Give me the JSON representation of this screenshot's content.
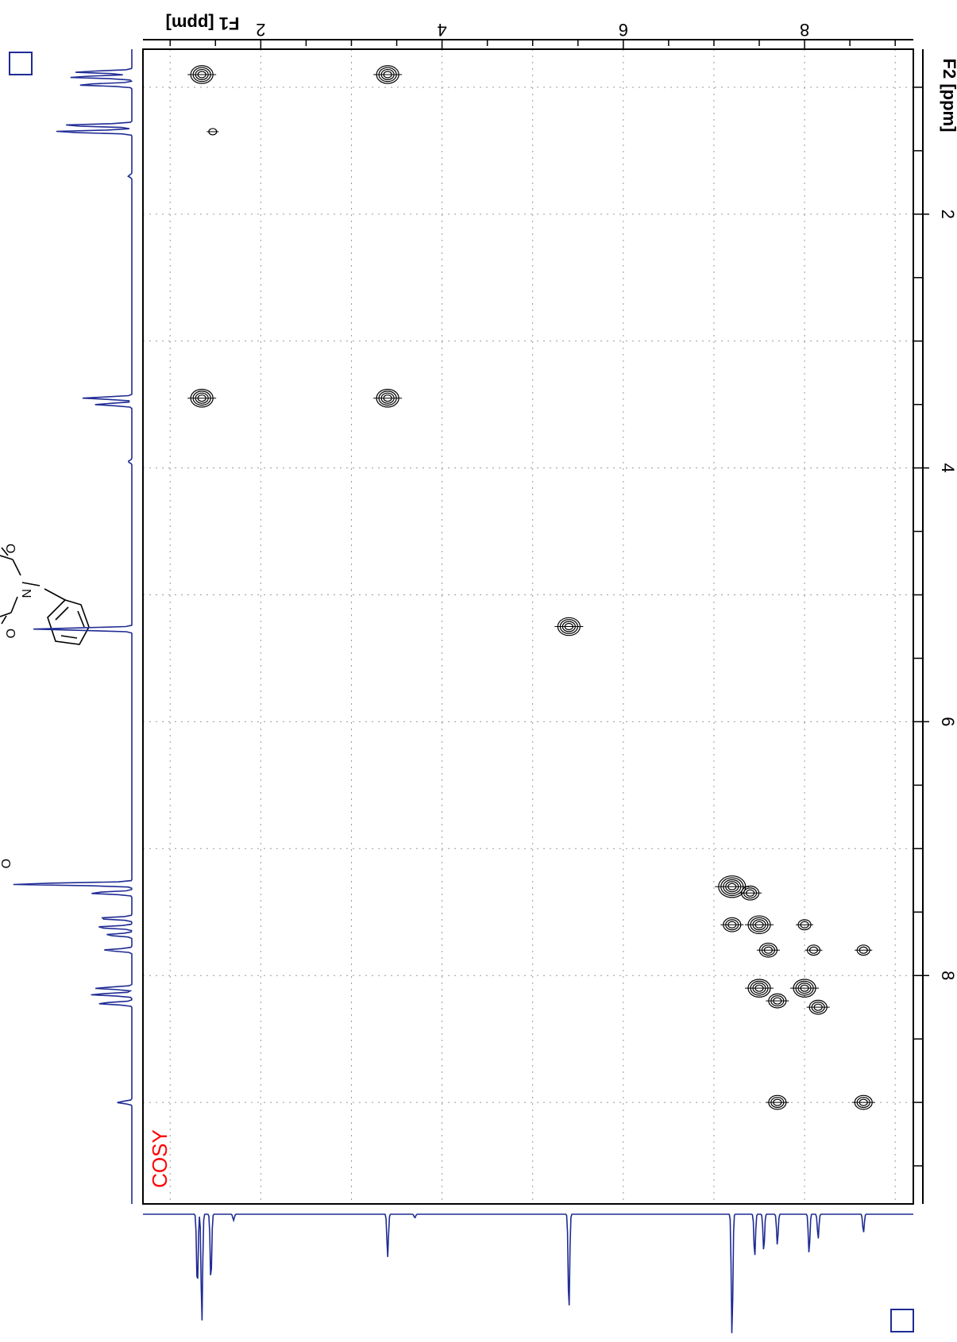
{
  "chart_data": {
    "type": "scatter",
    "experiment": "COSY",
    "f1_axis": {
      "label": "F1 [ppm]",
      "ticks": [
        2,
        4,
        6,
        8
      ],
      "range": [
        0.7,
        9.2
      ]
    },
    "f2_axis": {
      "label": "F2 [ppm]",
      "ticks": [
        2,
        4,
        6,
        8
      ],
      "range": [
        0.7,
        9.8
      ]
    },
    "grid": true,
    "cross_peaks": [
      {
        "f1": 1.35,
        "f2": 0.9,
        "size": 4
      },
      {
        "f1": 1.47,
        "f2": 1.35,
        "size": 1
      },
      {
        "f1": 3.4,
        "f2": 0.9,
        "size": 4
      },
      {
        "f1": 1.35,
        "f2": 3.45,
        "size": 4
      },
      {
        "f1": 3.4,
        "f2": 3.45,
        "size": 4
      },
      {
        "f1": 5.4,
        "f2": 5.25,
        "size": 4
      },
      {
        "f1": 7.2,
        "f2": 7.3,
        "size": 5
      },
      {
        "f1": 7.4,
        "f2": 7.35,
        "size": 3
      },
      {
        "f1": 7.2,
        "f2": 7.6,
        "size": 3
      },
      {
        "f1": 7.5,
        "f2": 7.6,
        "size": 4
      },
      {
        "f1": 7.6,
        "f2": 7.8,
        "size": 3
      },
      {
        "f1": 8.0,
        "f2": 7.6,
        "size": 2
      },
      {
        "f1": 8.1,
        "f2": 7.8,
        "size": 2
      },
      {
        "f1": 8.65,
        "f2": 7.8,
        "size": 2
      },
      {
        "f1": 7.5,
        "f2": 8.1,
        "size": 4
      },
      {
        "f1": 7.7,
        "f2": 8.2,
        "size": 3
      },
      {
        "f1": 8.0,
        "f2": 8.1,
        "size": 4
      },
      {
        "f1": 8.15,
        "f2": 8.25,
        "size": 3
      },
      {
        "f1": 7.7,
        "f2": 9.0,
        "size": 3
      },
      {
        "f1": 8.65,
        "f2": 9.0,
        "size": 3
      }
    ],
    "f2_projection_peaks": [
      {
        "ppm": 0.88,
        "height": 0.47
      },
      {
        "ppm": 0.92,
        "height": 0.52
      },
      {
        "ppm": 0.98,
        "height": 0.45
      },
      {
        "ppm": 1.3,
        "height": 0.58
      },
      {
        "ppm": 1.35,
        "height": 0.65
      },
      {
        "ppm": 1.7,
        "height": 0.03
      },
      {
        "ppm": 3.45,
        "height": 0.4
      },
      {
        "ppm": 3.5,
        "height": 0.3
      },
      {
        "ppm": 3.95,
        "height": 0.03
      },
      {
        "ppm": 5.27,
        "height": 0.8
      },
      {
        "ppm": 7.28,
        "height": 1.0
      },
      {
        "ppm": 7.35,
        "height": 0.35
      },
      {
        "ppm": 7.55,
        "height": 0.28
      },
      {
        "ppm": 7.62,
        "height": 0.3
      },
      {
        "ppm": 7.68,
        "height": 0.22
      },
      {
        "ppm": 7.8,
        "height": 0.23
      },
      {
        "ppm": 8.1,
        "height": 0.3
      },
      {
        "ppm": 8.15,
        "height": 0.34
      },
      {
        "ppm": 8.22,
        "height": 0.28
      },
      {
        "ppm": 9.0,
        "height": 0.12
      }
    ],
    "f1_projection_peaks": [
      {
        "ppm": 1.3,
        "height": 0.6
      },
      {
        "ppm": 1.35,
        "height": 0.88
      },
      {
        "ppm": 1.45,
        "height": 0.55
      },
      {
        "ppm": 1.7,
        "height": 0.05
      },
      {
        "ppm": 3.4,
        "height": 0.35
      },
      {
        "ppm": 3.7,
        "height": 0.03
      },
      {
        "ppm": 5.4,
        "height": 0.8
      },
      {
        "ppm": 7.2,
        "height": 1.0
      },
      {
        "ppm": 7.45,
        "height": 0.35
      },
      {
        "ppm": 7.55,
        "height": 0.3
      },
      {
        "ppm": 7.7,
        "height": 0.25
      },
      {
        "ppm": 8.05,
        "height": 0.32
      },
      {
        "ppm": 8.15,
        "height": 0.2
      },
      {
        "ppm": 8.65,
        "height": 0.15
      }
    ],
    "colors": {
      "spectrum": "#1f2b94",
      "contour": "#000000",
      "grid": "#9a9a9a",
      "label": "#ff0000"
    }
  }
}
